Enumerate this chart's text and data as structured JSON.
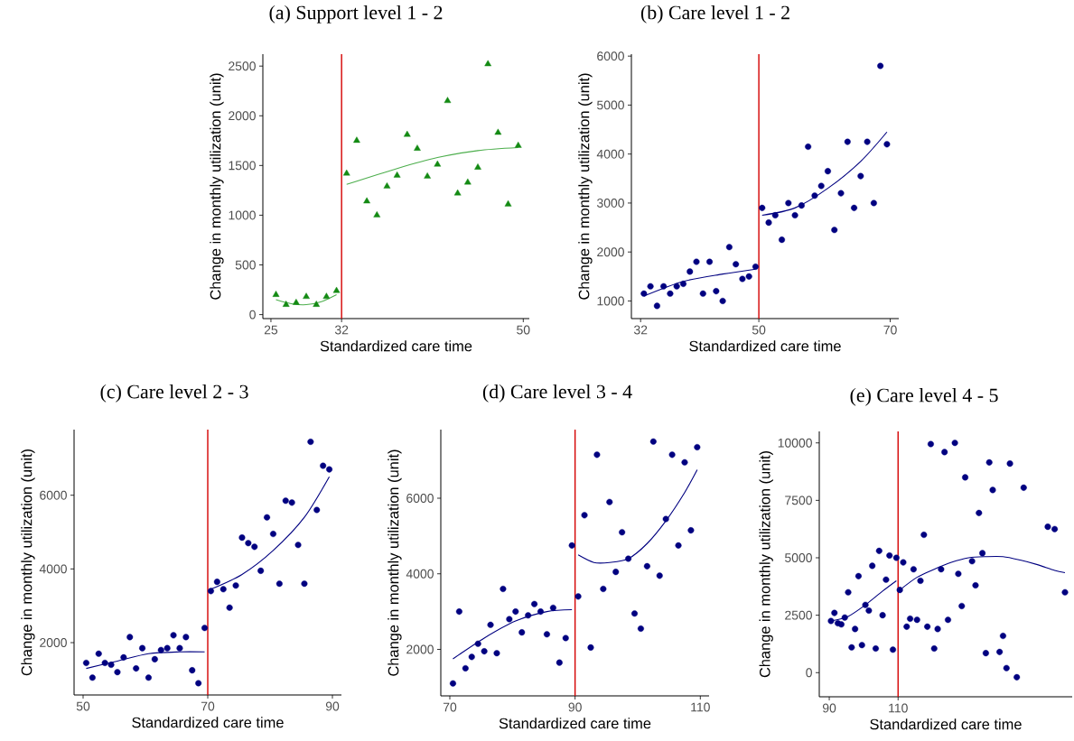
{
  "chart_data": [
    {
      "type": "scatter",
      "title": "(a) Support level 1 - 2",
      "xlabel": "Standardized care time",
      "ylabel": "Change in monthly utilization (unit)",
      "xlim": [
        24.2,
        50.6
      ],
      "ylim": [
        -40,
        2620
      ],
      "xticks": [
        25,
        32,
        50
      ],
      "yticks": [
        0,
        500,
        1000,
        1500,
        2000,
        2500
      ],
      "ref_lines": [
        {
          "axis": "x",
          "value": 32,
          "color": "#d40000"
        }
      ],
      "series": [
        {
          "marker": "triangle",
          "color": "#138a13",
          "x": [
            25.5,
            26.5,
            27.5,
            28.5,
            29.5,
            30.5,
            31.5,
            32.5,
            33.5,
            34.5,
            35.5,
            36.5,
            37.5,
            38.5,
            39.5,
            40.5,
            41.5,
            42.5,
            43.5,
            44.5,
            45.5,
            46.5,
            47.5,
            48.5,
            49.5
          ],
          "values": [
            200,
            100,
            120,
            180,
            100,
            180,
            240,
            1420,
            1750,
            1140,
            1000,
            1290,
            1400,
            1810,
            1670,
            1390,
            1510,
            2150,
            1220,
            1330,
            1480,
            2520,
            1830,
            1110,
            1700
          ]
        },
        {
          "type": "line",
          "color": "#4cae4c",
          "x": [
            25.5,
            27,
            28.5,
            30,
            31.5
          ],
          "values": [
            150,
            110,
            100,
            130,
            200
          ]
        },
        {
          "type": "line",
          "color": "#4cae4c",
          "x": [
            32.5,
            37.5,
            41.5,
            45.5,
            49.5
          ],
          "values": [
            1310,
            1470,
            1580,
            1650,
            1680
          ]
        }
      ]
    },
    {
      "type": "scatter",
      "title": "(b) Care level 1 - 2",
      "xlabel": "Standardized care time",
      "ylabel": "Change in monthly utilization (unit)",
      "xlim": [
        30.6,
        71.3
      ],
      "ylim": [
        640,
        6040
      ],
      "xticks": [
        32,
        50,
        70
      ],
      "yticks": [
        1000,
        2000,
        3000,
        4000,
        5000,
        6000
      ],
      "ref_lines": [
        {
          "axis": "x",
          "value": 50,
          "color": "#d40000"
        }
      ],
      "series": [
        {
          "marker": "circle",
          "color": "#000080",
          "x": [
            32.5,
            33.5,
            34.5,
            35.5,
            36.5,
            37.5,
            38.5,
            39.5,
            40.5,
            41.5,
            42.5,
            43.5,
            44.5,
            45.5,
            46.5,
            47.5,
            48.5,
            49.5,
            50.5,
            51.5,
            52.5,
            53.5,
            54.5,
            55.5,
            56.5,
            57.5,
            58.5,
            59.5,
            60.5,
            61.5,
            62.5,
            63.5,
            64.5,
            65.5,
            66.5,
            67.5,
            68.5,
            69.5
          ],
          "values": [
            1150,
            1300,
            900,
            1300,
            1150,
            1300,
            1350,
            1600,
            1800,
            1150,
            1800,
            1200,
            1000,
            2100,
            1750,
            1450,
            1500,
            1700,
            2900,
            2600,
            2750,
            2250,
            3000,
            2750,
            2950,
            4150,
            3150,
            3350,
            3650,
            2450,
            3200,
            4250,
            2900,
            3550,
            4250,
            3000,
            5800,
            4200
          ]
        },
        {
          "type": "line",
          "color": "#000080",
          "x": [
            32.5,
            38.5,
            44.5,
            49.5
          ],
          "values": [
            1100,
            1400,
            1550,
            1650
          ]
        },
        {
          "type": "line",
          "color": "#000080",
          "x": [
            50.5,
            55.5,
            60.5,
            65.5,
            69.5
          ],
          "values": [
            2750,
            2900,
            3300,
            3850,
            4450
          ]
        }
      ]
    },
    {
      "type": "scatter",
      "title": "(c) Care level 2 - 3",
      "xlabel": "Standardized care time",
      "ylabel": "Change in monthly utilization (unit)",
      "xlim": [
        48.55,
        91.45
      ],
      "ylim": [
        580,
        7780
      ],
      "xticks": [
        50,
        70,
        90
      ],
      "yticks": [
        2000,
        4000,
        6000
      ],
      "ref_lines": [
        {
          "axis": "x",
          "value": 70,
          "color": "#d40000"
        }
      ],
      "series": [
        {
          "marker": "circle",
          "color": "#000080",
          "x": [
            50.5,
            51.5,
            52.5,
            53.5,
            54.5,
            55.5,
            56.5,
            57.5,
            58.5,
            59.5,
            60.5,
            61.5,
            62.5,
            63.5,
            64.5,
            65.5,
            66.5,
            67.5,
            68.5,
            69.5,
            70.5,
            71.5,
            72.5,
            73.5,
            74.5,
            75.5,
            76.5,
            77.5,
            78.5,
            79.5,
            80.5,
            81.5,
            82.5,
            83.5,
            84.5,
            85.5,
            86.5,
            87.5,
            88.5,
            89.5
          ],
          "values": [
            1450,
            1050,
            1700,
            1450,
            1400,
            1200,
            1600,
            2150,
            1300,
            1850,
            1050,
            1550,
            1800,
            1850,
            2200,
            1850,
            2150,
            1250,
            900,
            2400,
            3400,
            3650,
            3450,
            2950,
            3550,
            4850,
            4700,
            4600,
            3950,
            5400,
            4950,
            3600,
            5850,
            5800,
            4650,
            3600,
            7450,
            5600,
            6800,
            6700
          ]
        },
        {
          "type": "line",
          "color": "#000080",
          "x": [
            50.5,
            55.5,
            60.5,
            65.5,
            69.5
          ],
          "values": [
            1300,
            1500,
            1700,
            1750,
            1750
          ]
        },
        {
          "type": "line",
          "color": "#000080",
          "x": [
            70.5,
            75.5,
            80.5,
            85.5,
            89.5
          ],
          "values": [
            3450,
            3850,
            4500,
            5400,
            6500
          ]
        }
      ]
    },
    {
      "type": "scatter",
      "title": "(d) Care level 3 - 4",
      "xlabel": "Standardized care time",
      "ylabel": "Change in monthly utilization (unit)",
      "xlim": [
        68.56,
        111.4
      ],
      "ylim": [
        770,
        7815
      ],
      "xticks": [
        70,
        90,
        110
      ],
      "yticks": [
        2000,
        4000,
        6000
      ],
      "ref_lines": [
        {
          "axis": "x",
          "value": 90,
          "color": "#d40000"
        }
      ],
      "series": [
        {
          "marker": "circle",
          "color": "#000080",
          "x": [
            70.5,
            71.5,
            72.5,
            73.5,
            74.5,
            75.5,
            76.5,
            77.5,
            78.5,
            79.5,
            80.5,
            81.5,
            82.5,
            83.5,
            84.5,
            85.5,
            86.5,
            87.5,
            88.5,
            89.5,
            90.5,
            91.5,
            92.5,
            93.5,
            94.5,
            95.5,
            96.5,
            97.5,
            98.5,
            99.5,
            100.5,
            101.5,
            102.5,
            103.5,
            104.5,
            105.5,
            106.5,
            107.5,
            108.5,
            109.5
          ],
          "values": [
            1100,
            3000,
            1500,
            1800,
            2150,
            1950,
            2650,
            1900,
            3600,
            2800,
            3000,
            2450,
            2900,
            3200,
            3000,
            2400,
            3100,
            1650,
            2300,
            4750,
            3400,
            5550,
            2050,
            7150,
            3600,
            5900,
            4050,
            5100,
            4400,
            2950,
            2550,
            4200,
            7500,
            3950,
            5450,
            7150,
            4750,
            6950,
            5150,
            7350
          ]
        },
        {
          "type": "line",
          "color": "#000080",
          "x": [
            70.5,
            75.5,
            80.5,
            85.5,
            89.5
          ],
          "values": [
            1750,
            2300,
            2750,
            3000,
            3050
          ]
        },
        {
          "type": "line",
          "color": "#000080",
          "x": [
            90.5,
            93,
            95.5,
            98.5,
            101.5,
            104.5,
            107.5,
            109.5
          ],
          "values": [
            4500,
            4300,
            4300,
            4400,
            4800,
            5400,
            6150,
            6750
          ]
        }
      ]
    },
    {
      "type": "scatter",
      "title": "(e) Care level 4 - 5",
      "xlabel": "Standardized care time",
      "ylabel": "Change in monthly utilization (unit)",
      "xlim": [
        87.1,
        160.6
      ],
      "ylim": [
        -1050,
        10500
      ],
      "xticks": [
        90,
        110
      ],
      "yticks": [
        0,
        2500,
        5000,
        7500,
        10000
      ],
      "ref_lines": [
        {
          "axis": "x",
          "value": 110,
          "color": "#d40000"
        }
      ],
      "series": [
        {
          "marker": "circle",
          "color": "#000080",
          "x": [
            90.5,
            91.5,
            92.5,
            93.5,
            94.5,
            95.5,
            96.5,
            97.5,
            98.5,
            99.5,
            100.5,
            101.5,
            102.5,
            103.5,
            104.5,
            105.5,
            106.5,
            107.5,
            108.5,
            109.5,
            110.5,
            111.5,
            112.5,
            113.5,
            114.5,
            115.5,
            116.5,
            117.5,
            118.5,
            119.5,
            120.5,
            121.5,
            122.5,
            123.5,
            124.5,
            126.5,
            127.5,
            128.5,
            129.5,
            131.5,
            132.5,
            133.5,
            134.5,
            135.5,
            136.5,
            137.5,
            139.5,
            140.5,
            141.5,
            142.5,
            144.5,
            146.5,
            153.5,
            155.5,
            158.5
          ],
          "values": [
            2250,
            2600,
            2150,
            2100,
            2400,
            3500,
            1100,
            1900,
            4200,
            1200,
            2950,
            2700,
            4650,
            1050,
            5300,
            2500,
            4050,
            5100,
            1000,
            5000,
            3600,
            4800,
            2000,
            2350,
            4500,
            2300,
            4000,
            6000,
            2000,
            9950,
            1050,
            1900,
            4500,
            9600,
            2300,
            10000,
            4300,
            2900,
            8500,
            4850,
            3800,
            6950,
            5200,
            850,
            9150,
            7950,
            900,
            1600,
            200,
            9100,
            -200,
            8050,
            6350,
            6250,
            3500
          ]
        },
        {
          "type": "line",
          "color": "#000080",
          "x": [
            90.5,
            95.5,
            100.5,
            105.5,
            109.5
          ],
          "values": [
            2250,
            2450,
            2950,
            3550,
            4000
          ]
        },
        {
          "type": "line",
          "color": "#000080",
          "x": [
            110.5,
            115.5,
            120.5,
            125.5,
            130.5,
            135.5,
            140.5,
            145.5,
            150.5,
            155.5,
            158.5
          ],
          "values": [
            3600,
            4150,
            4500,
            4800,
            5000,
            5050,
            5050,
            4900,
            4700,
            4450,
            4350
          ]
        }
      ]
    }
  ]
}
